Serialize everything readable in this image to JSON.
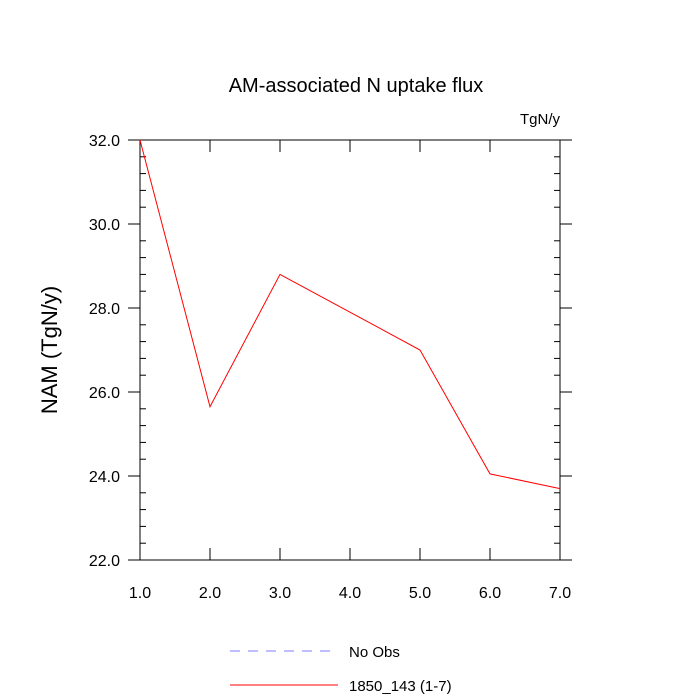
{
  "chart_data": {
    "type": "line",
    "title": "AM-associated N uptake flux",
    "units_label": "TgN/y",
    "ylabel": "NAM  (TgN/y)",
    "xlabel": "",
    "xlim": [
      1.0,
      7.0
    ],
    "ylim": [
      22.0,
      32.0
    ],
    "x_ticks": [
      "1.0",
      "2.0",
      "3.0",
      "4.0",
      "5.0",
      "6.0",
      "7.0"
    ],
    "y_ticks": [
      "22.0",
      "24.0",
      "26.0",
      "28.0",
      "30.0",
      "32.0"
    ],
    "grid": false,
    "legend_position": "bottom",
    "series": [
      {
        "name": "1850_143 (1-7)",
        "color": "#ff0000",
        "dash": "solid",
        "x": [
          1.0,
          2.0,
          3.0,
          4.0,
          5.0,
          6.0,
          7.0
        ],
        "values": [
          32.0,
          25.65,
          28.8,
          27.9,
          27.0,
          24.05,
          23.7
        ]
      }
    ],
    "legend": [
      {
        "label": "No Obs",
        "color": "#7f7fff",
        "dash": "dashed"
      },
      {
        "label": "1850_143 (1-7)",
        "color": "#ff0000",
        "dash": "solid"
      }
    ]
  }
}
